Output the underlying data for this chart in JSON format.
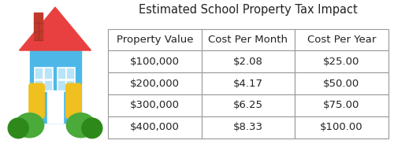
{
  "title": "Estimated School Property Tax Impact",
  "columns": [
    "Property Value",
    "Cost Per Month",
    "Cost Per Year"
  ],
  "rows": [
    [
      "$100,000",
      "$2.08",
      "$25.00"
    ],
    [
      "$200,000",
      "$4.17",
      "$50.00"
    ],
    [
      "$300,000",
      "$6.25",
      "$75.00"
    ],
    [
      "$400,000",
      "$8.33",
      "$100.00"
    ]
  ],
  "title_fontsize": 10.5,
  "cell_fontsize": 9.5,
  "header_fontsize": 9.5,
  "bg_color": "#ffffff",
  "border_color": "#999999",
  "text_color": "#222222",
  "title_color": "#222222",
  "fig_width": 5.0,
  "fig_height": 1.83,
  "dpi": 100,
  "house_colors": {
    "body": "#4db8e8",
    "roof": "#e84040",
    "chimney": "#c0392b",
    "chimney_top": "#a93226",
    "window_bg": "#b8e4f7",
    "window_frame": "#ffffff",
    "door": "#ffffff",
    "side_window": "#f0c020",
    "bush1": "#4aaa3a",
    "bush2": "#2d8a1a"
  }
}
